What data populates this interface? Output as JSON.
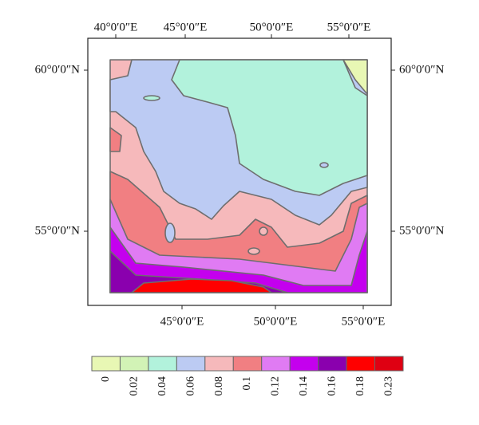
{
  "axes": {
    "top": [
      "40°0′0″E",
      "45°0′0″E",
      "50°0′0″E",
      "55°0′0″E"
    ],
    "bottom": [
      "45°0′0″E",
      "50°0′0″E",
      "55°0′0″E"
    ],
    "left": [
      "60°0′0″N",
      "55°0′0″N"
    ],
    "right": [
      "60°0′0″N",
      "55°0′0″N"
    ]
  },
  "colorbar": {
    "levels": [
      0,
      0.02,
      0.04,
      0.06,
      0.08,
      0.1,
      0.12,
      0.14,
      0.16,
      0.18,
      0.23
    ],
    "colors": [
      "#e8f7b4",
      "#d2f3b6",
      "#b2f2dc",
      "#bccbf3",
      "#f6b9bb",
      "#f17f82",
      "#e07bf3",
      "#c400ee",
      "#8a00ae",
      "#ff0000",
      "#df0012"
    ]
  }
}
